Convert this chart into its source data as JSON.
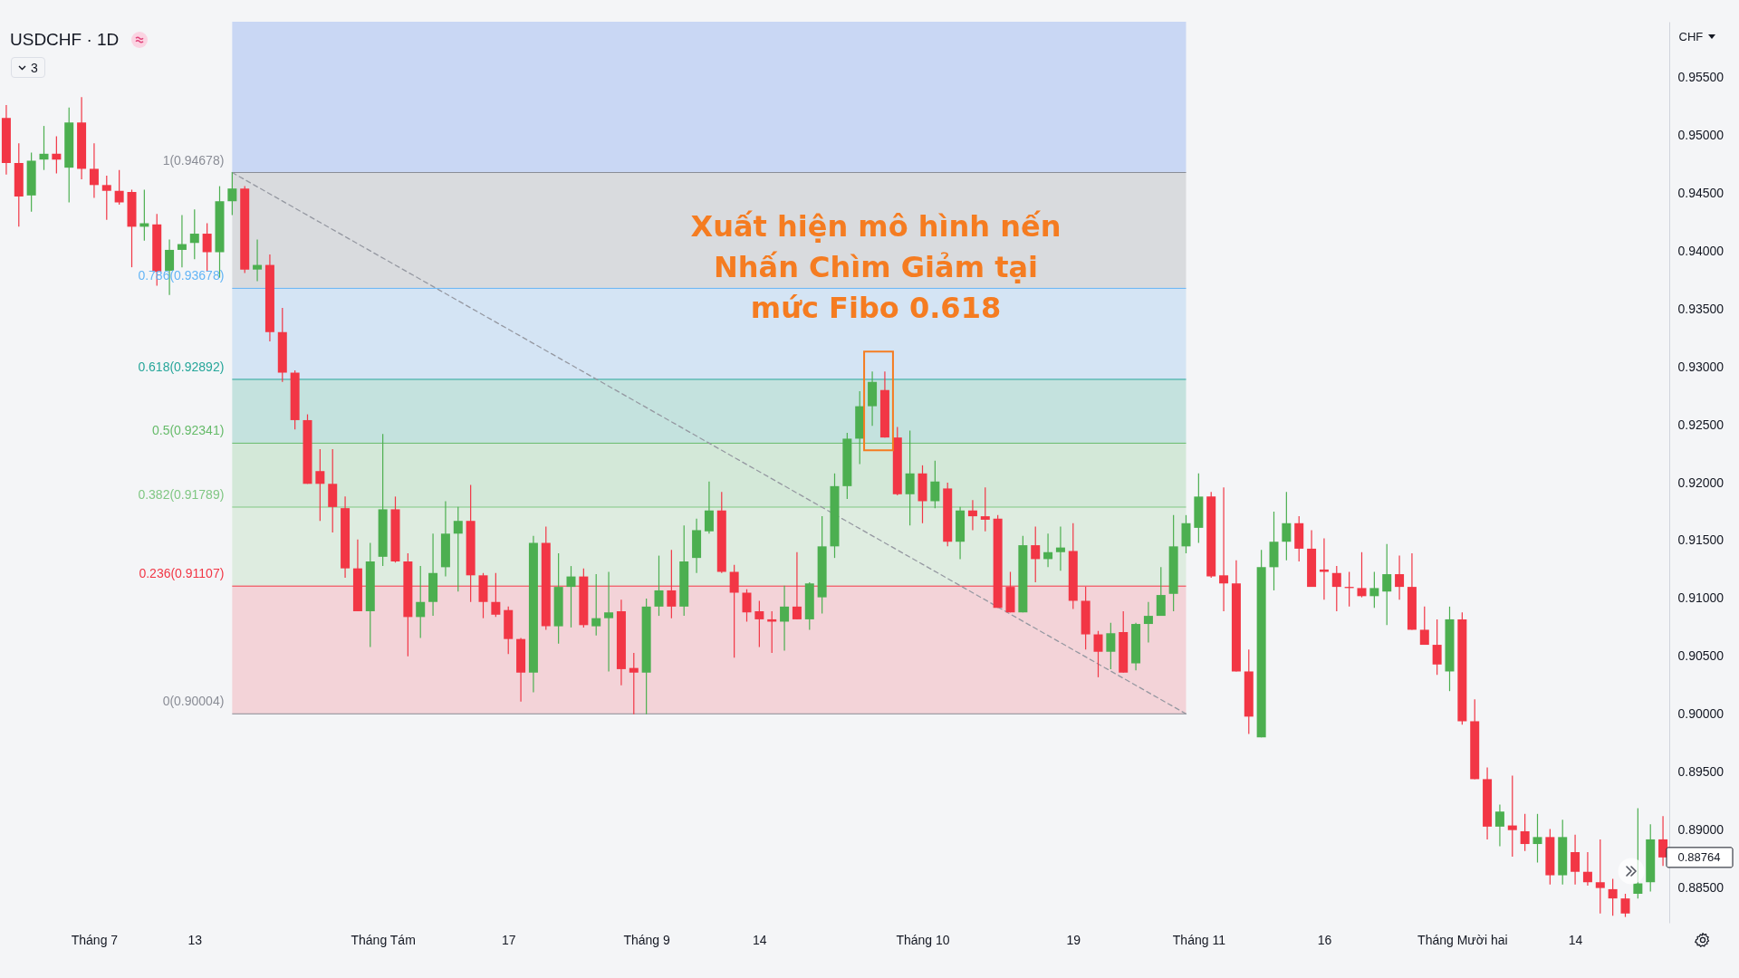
{
  "chart_data": {
    "type": "candlestick",
    "title": "USDCHF · 1D",
    "ylabel": "CHF",
    "categories": [
      null,
      null,
      null,
      null,
      null,
      null,
      null,
      "Tháng 7",
      null,
      null,
      null,
      null,
      null,
      null,
      null,
      "13",
      null,
      null,
      null,
      null,
      null,
      null,
      null,
      null,
      null,
      null,
      null,
      null,
      null,
      null,
      "Tháng Tám",
      null,
      null,
      null,
      null,
      null,
      null,
      null,
      null,
      null,
      "17",
      null,
      null,
      null,
      null,
      null,
      null,
      null,
      null,
      null,
      null,
      "Tháng 9",
      null,
      null,
      null,
      null,
      null,
      null,
      null,
      null,
      "14",
      null,
      null,
      null,
      null,
      null,
      null,
      null,
      null,
      null,
      null,
      null,
      null,
      "Tháng 10",
      null,
      null,
      null,
      null,
      null,
      null,
      null,
      null,
      null,
      null,
      null,
      "19",
      null,
      null,
      null,
      null,
      null,
      null,
      null,
      null,
      null,
      "Tháng 11",
      null,
      null,
      null,
      null,
      null,
      null,
      null,
      null,
      null,
      "16",
      null,
      null,
      null,
      null,
      null,
      null,
      null,
      null,
      null,
      null,
      "Tháng Mười hai",
      null,
      null,
      null,
      null,
      null,
      null,
      null,
      null,
      "14",
      null,
      null,
      null,
      null,
      null,
      null,
      null
    ],
    "ohlc": [
      [
        0.9515,
        0.9526,
        0.9466,
        0.9476
      ],
      [
        0.9476,
        0.9493,
        0.9421,
        0.9447
      ],
      [
        0.9448,
        0.9485,
        0.9434,
        0.9478
      ],
      [
        0.9479,
        0.9508,
        0.947,
        0.9484
      ],
      [
        0.9484,
        0.9499,
        0.9467,
        0.9479
      ],
      [
        0.9472,
        0.9524,
        0.9442,
        0.9511
      ],
      [
        0.9511,
        0.9533,
        0.9462,
        0.9471
      ],
      [
        0.9471,
        0.9493,
        0.9446,
        0.9457
      ],
      [
        0.9457,
        0.9465,
        0.9427,
        0.9452
      ],
      [
        0.9452,
        0.947,
        0.944,
        0.9442
      ],
      [
        0.9451,
        0.9453,
        0.9386,
        0.9421
      ],
      [
        0.9421,
        0.9453,
        0.9409,
        0.9424
      ],
      [
        0.9423,
        0.9432,
        0.937,
        0.9382
      ],
      [
        0.9383,
        0.941,
        0.9362,
        0.9401
      ],
      [
        0.9401,
        0.9431,
        0.9386,
        0.9406
      ],
      [
        0.9407,
        0.9436,
        0.9393,
        0.9415
      ],
      [
        0.9415,
        0.9424,
        0.9383,
        0.9399
      ],
      [
        0.9399,
        0.9456,
        0.9377,
        0.9443
      ],
      [
        0.9443,
        0.9468,
        0.9431,
        0.9454
      ],
      [
        0.9454,
        0.9456,
        0.9381,
        0.9384
      ],
      [
        0.9384,
        0.941,
        0.9374,
        0.9388
      ],
      [
        0.9388,
        0.9397,
        0.9322,
        0.933
      ],
      [
        0.933,
        0.9351,
        0.9287,
        0.9295
      ],
      [
        0.9295,
        0.9297,
        0.9246,
        0.9254
      ],
      [
        0.9254,
        0.9259,
        0.9199,
        0.9199
      ],
      [
        0.921,
        0.9229,
        0.9167,
        0.9199
      ],
      [
        0.9199,
        0.9229,
        0.9157,
        0.9179
      ],
      [
        0.9178,
        0.9188,
        0.9118,
        0.9126
      ],
      [
        0.9126,
        0.9151,
        0.9089,
        0.9089
      ],
      [
        0.9089,
        0.9148,
        0.9058,
        0.9132
      ],
      [
        0.9136,
        0.9242,
        0.9128,
        0.9177
      ],
      [
        0.9177,
        0.9188,
        0.9131,
        0.9132
      ],
      [
        0.9132,
        0.9139,
        0.905,
        0.9084
      ],
      [
        0.9084,
        0.9128,
        0.9066,
        0.9097
      ],
      [
        0.9097,
        0.9156,
        0.9085,
        0.9122
      ],
      [
        0.9127,
        0.9184,
        0.9119,
        0.9156
      ],
      [
        0.9156,
        0.9179,
        0.9106,
        0.9167
      ],
      [
        0.9167,
        0.9198,
        0.9097,
        0.912
      ],
      [
        0.912,
        0.9122,
        0.9083,
        0.9097
      ],
      [
        0.9097,
        0.9122,
        0.9084,
        0.9086
      ],
      [
        0.909,
        0.9093,
        0.9052,
        0.9065
      ],
      [
        0.9065,
        0.9066,
        0.9011,
        0.9036
      ],
      [
        0.9036,
        0.9154,
        0.9019,
        0.9148
      ],
      [
        0.9148,
        0.9162,
        0.9073,
        0.9076
      ],
      [
        0.9076,
        0.9139,
        0.9061,
        0.911
      ],
      [
        0.911,
        0.9128,
        0.9075,
        0.9119
      ],
      [
        0.9119,
        0.9126,
        0.9075,
        0.9077
      ],
      [
        0.9076,
        0.9121,
        0.9068,
        0.9083
      ],
      [
        0.9083,
        0.9123,
        0.9037,
        0.9088
      ],
      [
        0.9089,
        0.9099,
        0.9025,
        0.9039
      ],
      [
        0.904,
        0.9053,
        0.9,
        0.9036
      ],
      [
        0.9036,
        0.91,
        0.9,
        0.9093
      ],
      [
        0.9093,
        0.9137,
        0.9085,
        0.9107
      ],
      [
        0.9107,
        0.9142,
        0.9083,
        0.9093
      ],
      [
        0.9093,
        0.9163,
        0.9085,
        0.9132
      ],
      [
        0.9135,
        0.9169,
        0.9122,
        0.9159
      ],
      [
        0.9158,
        0.9201,
        0.9156,
        0.9176
      ],
      [
        0.9176,
        0.9192,
        0.9122,
        0.9123
      ],
      [
        0.9123,
        0.9129,
        0.9049,
        0.9105
      ],
      [
        0.9105,
        0.9108,
        0.908,
        0.9088
      ],
      [
        0.9089,
        0.9098,
        0.9058,
        0.9082
      ],
      [
        0.9082,
        0.9089,
        0.9053,
        0.908
      ],
      [
        0.908,
        0.9111,
        0.9055,
        0.9093
      ],
      [
        0.9093,
        0.914,
        0.9082,
        0.9082
      ],
      [
        0.9082,
        0.9114,
        0.9073,
        0.9113
      ],
      [
        0.9101,
        0.9171,
        0.9087,
        0.9145
      ],
      [
        0.9145,
        0.9208,
        0.9135,
        0.9197
      ],
      [
        0.9197,
        0.9243,
        0.9186,
        0.9238
      ],
      [
        0.9238,
        0.9279,
        0.9216,
        0.9266
      ],
      [
        0.9266,
        0.9296,
        0.9249,
        0.9287
      ],
      [
        0.928,
        0.9296,
        0.9239,
        0.9239
      ],
      [
        0.9239,
        0.9248,
        0.9189,
        0.919
      ],
      [
        0.919,
        0.9245,
        0.9163,
        0.9208
      ],
      [
        0.9208,
        0.9215,
        0.9165,
        0.9184
      ],
      [
        0.9184,
        0.9219,
        0.9178,
        0.9201
      ],
      [
        0.9195,
        0.92,
        0.9145,
        0.9149
      ],
      [
        0.9149,
        0.9179,
        0.9134,
        0.9176
      ],
      [
        0.9176,
        0.9185,
        0.9159,
        0.9171
      ],
      [
        0.9171,
        0.9196,
        0.9158,
        0.9168
      ],
      [
        0.9169,
        0.9172,
        0.9092,
        0.9092
      ],
      [
        0.911,
        0.9123,
        0.9088,
        0.9088
      ],
      [
        0.9088,
        0.9154,
        0.9088,
        0.9146
      ],
      [
        0.9146,
        0.9162,
        0.9114,
        0.9134
      ],
      [
        0.9134,
        0.9156,
        0.9127,
        0.914
      ],
      [
        0.914,
        0.9162,
        0.9124,
        0.9144
      ],
      [
        0.9141,
        0.9165,
        0.9091,
        0.9098
      ],
      [
        0.9098,
        0.911,
        0.9056,
        0.9069
      ],
      [
        0.9069,
        0.9072,
        0.9032,
        0.9054
      ],
      [
        0.9054,
        0.9079,
        0.9039,
        0.907
      ],
      [
        0.9071,
        0.9089,
        0.9036,
        0.9036
      ],
      [
        0.9044,
        0.9079,
        0.9038,
        0.9078
      ],
      [
        0.9078,
        0.9097,
        0.9062,
        0.9085
      ],
      [
        0.9085,
        0.9127,
        0.9085,
        0.9103
      ],
      [
        0.9104,
        0.9172,
        0.9089,
        0.9145
      ],
      [
        0.9145,
        0.9172,
        0.9139,
        0.9165
      ],
      [
        0.9161,
        0.9208,
        0.9148,
        0.9188
      ],
      [
        0.9188,
        0.9192,
        0.9118,
        0.9119
      ],
      [
        0.912,
        0.9196,
        0.9089,
        0.9113
      ],
      [
        0.9113,
        0.9133,
        0.9037,
        0.9037
      ],
      [
        0.9037,
        0.9056,
        0.8983,
        0.8998
      ],
      [
        0.898,
        0.9142,
        0.898,
        0.9127
      ],
      [
        0.9127,
        0.9175,
        0.9107,
        0.9149
      ],
      [
        0.9149,
        0.9192,
        0.9133,
        0.9165
      ],
      [
        0.9165,
        0.9171,
        0.9132,
        0.9143
      ],
      [
        0.9143,
        0.9159,
        0.911,
        0.911
      ],
      [
        0.9125,
        0.9152,
        0.9099,
        0.9123
      ],
      [
        0.9122,
        0.9128,
        0.9089,
        0.911
      ],
      [
        0.911,
        0.9123,
        0.9093,
        0.9109
      ],
      [
        0.9109,
        0.914,
        0.9101,
        0.9102
      ],
      [
        0.9102,
        0.9123,
        0.9092,
        0.9109
      ],
      [
        0.9106,
        0.9147,
        0.9077,
        0.9121
      ],
      [
        0.9121,
        0.9137,
        0.9099,
        0.911
      ],
      [
        0.911,
        0.9139,
        0.9073,
        0.9073
      ],
      [
        0.9073,
        0.9093,
        0.906,
        0.906
      ],
      [
        0.906,
        0.9082,
        0.9034,
        0.9043
      ],
      [
        0.9037,
        0.9093,
        0.902,
        0.9082
      ],
      [
        0.9082,
        0.9088,
        0.8991,
        0.8994
      ],
      [
        0.8994,
        0.9013,
        0.8944,
        0.8944
      ],
      [
        0.8944,
        0.8954,
        0.8892,
        0.8903
      ],
      [
        0.8903,
        0.8922,
        0.8886,
        0.8916
      ],
      [
        0.8904,
        0.8947,
        0.8877,
        0.89
      ],
      [
        0.8899,
        0.8914,
        0.8882,
        0.8888
      ],
      [
        0.8888,
        0.8914,
        0.8872,
        0.8894
      ],
      [
        0.8894,
        0.8901,
        0.8853,
        0.8861
      ],
      [
        0.8861,
        0.8909,
        0.8853,
        0.8894
      ],
      [
        0.8881,
        0.8896,
        0.8853,
        0.8864
      ],
      [
        0.8864,
        0.8881,
        0.8852,
        0.8855
      ],
      [
        0.8855,
        0.8892,
        0.8828,
        0.885
      ],
      [
        0.8849,
        0.8858,
        0.8826,
        0.8841
      ],
      [
        0.8841,
        0.8845,
        0.8825,
        0.8828
      ],
      [
        0.8845,
        0.8919,
        0.8841,
        0.8854
      ],
      [
        0.8855,
        0.8905,
        0.8847,
        0.8892
      ],
      [
        0.8892,
        0.8912,
        0.8869,
        0.88764
      ]
    ],
    "colors": [
      "#f23645",
      "#f23645",
      "#4caf50",
      "#4caf50",
      "#f23645",
      "#4caf50",
      "#f23645",
      "#f23645",
      "#f23645",
      "#f23645",
      "#f23645",
      "#4caf50",
      "#f23645",
      "#4caf50",
      "#4caf50",
      "#4caf50",
      "#f23645",
      "#4caf50",
      "#4caf50",
      "#f23645",
      "#4caf50",
      "#f23645",
      "#f23645",
      "#f23645",
      "#f23645",
      "#f23645",
      "#f23645",
      "#f23645",
      "#f23645",
      "#4caf50",
      "#4caf50",
      "#f23645",
      "#f23645",
      "#4caf50",
      "#4caf50",
      "#4caf50",
      "#4caf50",
      "#f23645",
      "#f23645",
      "#f23645",
      "#f23645",
      "#f23645",
      "#4caf50",
      "#f23645",
      "#4caf50",
      "#4caf50",
      "#f23645",
      "#4caf50",
      "#4caf50",
      "#f23645",
      "#f23645",
      "#4caf50",
      "#4caf50",
      "#f23645",
      "#4caf50",
      "#4caf50",
      "#4caf50",
      "#f23645",
      "#f23645",
      "#f23645",
      "#f23645",
      "#f23645",
      "#4caf50",
      "#f23645",
      "#4caf50",
      "#4caf50",
      "#4caf50",
      "#4caf50",
      "#4caf50",
      "#4caf50",
      "#f23645",
      "#f23645",
      "#4caf50",
      "#f23645",
      "#4caf50",
      "#f23645",
      "#4caf50",
      "#f23645",
      "#f23645",
      "#f23645",
      "#f23645",
      "#4caf50",
      "#f23645",
      "#4caf50",
      "#4caf50",
      "#f23645",
      "#f23645",
      "#f23645",
      "#4caf50",
      "#f23645",
      "#4caf50",
      "#4caf50",
      "#4caf50",
      "#4caf50",
      "#4caf50",
      "#4caf50",
      "#f23645",
      "#f23645",
      "#f23645",
      "#f23645",
      "#4caf50",
      "#4caf50",
      "#4caf50",
      "#f23645",
      "#f23645",
      "#f23645",
      "#f23645",
      "#f23645",
      "#f23645",
      "#4caf50",
      "#4caf50",
      "#f23645",
      "#f23645",
      "#f23645",
      "#f23645",
      "#4caf50",
      "#f23645",
      "#f23645",
      "#f23645",
      "#4caf50",
      "#f23645",
      "#f23645",
      "#4caf50",
      "#f23645",
      "#4caf50",
      "#f23645",
      "#f23645",
      "#f23645",
      "#f23645",
      "#f23645",
      "#4caf50",
      "#4caf50",
      "#f23645"
    ],
    "series": [
      {
        "type": "line",
        "color": "#9598a1",
        "line_style": "dashed",
        "values": [
          null,
          null,
          null,
          null,
          null,
          null,
          null,
          null,
          null,
          null,
          null,
          null,
          null,
          null,
          null,
          null,
          null,
          null,
          0.94678,
          null,
          null,
          null,
          null,
          null,
          null,
          null,
          null,
          null,
          null,
          null,
          null,
          null,
          null,
          null,
          null,
          null,
          null,
          null,
          null,
          null,
          null,
          null,
          null,
          null,
          null,
          null,
          null,
          null,
          null,
          null,
          null,
          null,
          null,
          null,
          null,
          null,
          null,
          null,
          null,
          null,
          null,
          null,
          null,
          null,
          null,
          null,
          null,
          null,
          null,
          null,
          null,
          null,
          null,
          null,
          null,
          null,
          null,
          null,
          null,
          null,
          null,
          null,
          null,
          null,
          null,
          null,
          null,
          null,
          null,
          null,
          null,
          null,
          null,
          null,
          0.90004,
          null,
          null,
          null,
          null,
          null,
          null,
          null,
          null,
          null,
          null,
          null,
          null,
          null,
          null,
          null,
          null,
          null,
          null,
          null,
          null,
          null,
          null,
          null,
          null,
          null,
          null,
          null,
          null,
          null,
          null,
          null,
          null,
          null,
          null,
          null,
          null,
          null,
          null
        ]
      }
    ],
    "ylim": [
      0.882,
      0.9598
    ],
    "yticks": [
      {
        "value": 0.885,
        "label": "0.88500"
      },
      {
        "value": 0.89,
        "label": "0.89000"
      },
      {
        "value": 0.895,
        "label": "0.89500"
      },
      {
        "value": 0.9,
        "label": "0.90000"
      },
      {
        "value": 0.905,
        "label": "0.90500"
      },
      {
        "value": 0.91,
        "label": "0.91000"
      },
      {
        "value": 0.915,
        "label": "0.91500"
      },
      {
        "value": 0.92,
        "label": "0.92000"
      },
      {
        "value": 0.925,
        "label": "0.92500"
      },
      {
        "value": 0.93,
        "label": "0.93000"
      },
      {
        "value": 0.935,
        "label": "0.93500"
      },
      {
        "value": 0.94,
        "label": "0.94000"
      },
      {
        "value": 0.945,
        "label": "0.94500"
      },
      {
        "value": 0.95,
        "label": "0.95000"
      },
      {
        "value": 0.955,
        "label": "0.95500"
      }
    ],
    "bands": [
      {
        "axis": "y",
        "from": 0.94678,
        "to": 0.9598,
        "color": "#c9d7f4"
      },
      {
        "axis": "y",
        "from": 0.93678,
        "to": 0.94678,
        "color": "#d9dbde"
      },
      {
        "axis": "y",
        "from": 0.92892,
        "to": 0.93678,
        "color": "#d4e4f4"
      },
      {
        "axis": "y",
        "from": 0.92341,
        "to": 0.92892,
        "color": "#c4e2de"
      },
      {
        "axis": "y",
        "from": 0.91789,
        "to": 0.92341,
        "color": "#d3e8d8"
      },
      {
        "axis": "y",
        "from": 0.91107,
        "to": 0.91789,
        "color": "#deece0"
      },
      {
        "axis": "y",
        "from": 0.90004,
        "to": 0.91107,
        "color": "#f3d3d8"
      }
    ],
    "ref_lines": [
      {
        "axis": "y",
        "value": 0.94678,
        "label": "1(0.94678)",
        "color": "#8a8d96"
      },
      {
        "axis": "y",
        "value": 0.93678,
        "label": "0.786(0.93678)",
        "color": "#64b5f6"
      },
      {
        "axis": "y",
        "value": 0.92892,
        "label": "0.618(0.92892)",
        "color": "#26a69a"
      },
      {
        "axis": "y",
        "value": 0.92341,
        "label": "0.5(0.92341)",
        "color": "#66bb6a"
      },
      {
        "axis": "y",
        "value": 0.91789,
        "label": "0.382(0.91789)",
        "color": "#81c784"
      },
      {
        "axis": "y",
        "value": 0.91107,
        "label": "0.236(0.91107)",
        "color": "#f23645"
      },
      {
        "axis": "y",
        "value": 0.90004,
        "label": "0(0.90004)",
        "color": "#8a8d96"
      }
    ],
    "annotations": [
      "Xuất hiện mô hình nến\nNhấn Chìm Giảm tại\nmức Fibo 0.618",
      "3",
      "0.88764"
    ]
  }
}
